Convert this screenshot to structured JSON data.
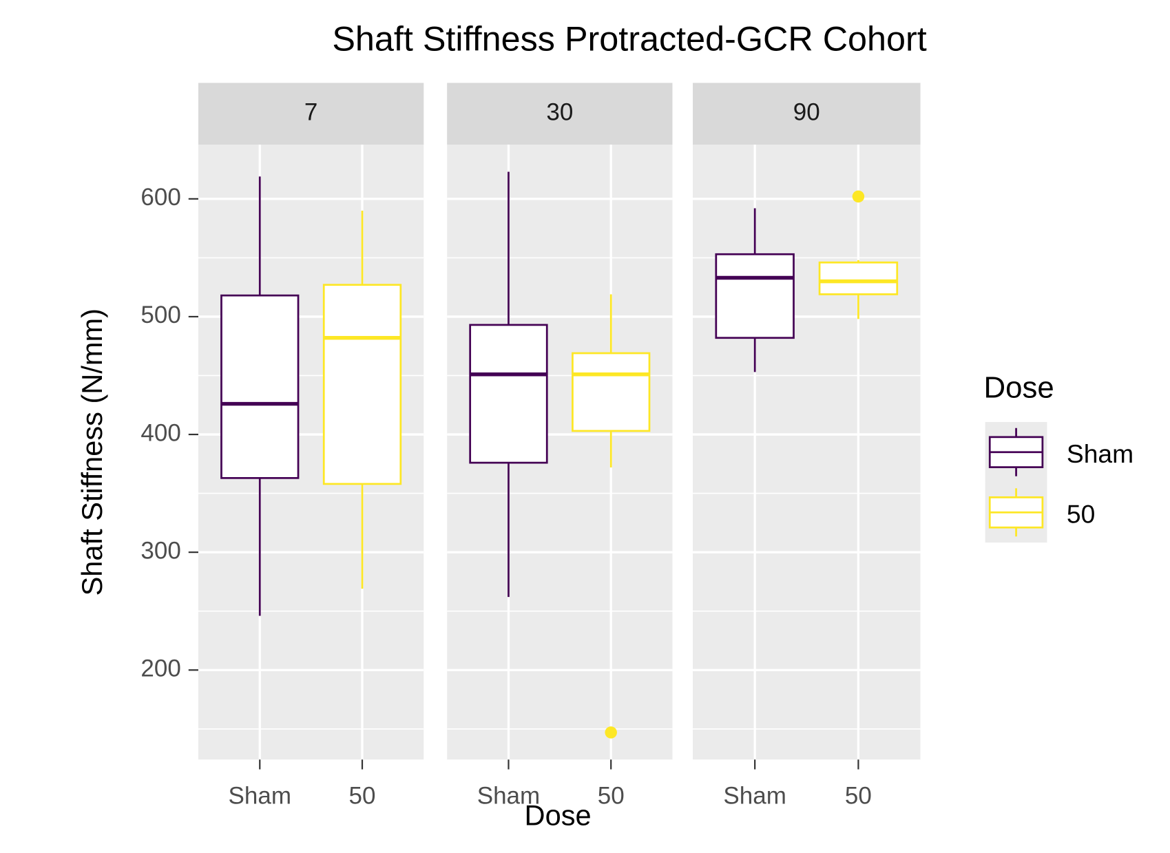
{
  "chart_data": {
    "type": "boxplot",
    "title": "Shaft Stiffness Protracted-GCR Cohort",
    "x_label": "Dose",
    "y_label": "Shaft Stiffness (N/mm)",
    "legend_title": "Dose",
    "legend_position": "right",
    "facets": [
      "7",
      "30",
      "90"
    ],
    "categories": [
      "Sham",
      "50"
    ],
    "ylim": [
      124,
      646
    ],
    "yticks": [
      200,
      300,
      400,
      500,
      600
    ],
    "yminor": [
      150,
      250,
      350,
      450,
      550
    ],
    "grid": true,
    "series": [
      {
        "name": "Sham",
        "color": "#440154",
        "boxes": [
          {
            "min": 246,
            "q1": 363,
            "median": 426,
            "q3": 518,
            "max": 619
          },
          {
            "min": 262,
            "q1": 376,
            "median": 451,
            "q3": 493,
            "max": 623
          },
          {
            "min": 453,
            "q1": 482,
            "median": 533,
            "q3": 553,
            "max": 592
          }
        ]
      },
      {
        "name": "50",
        "color": "#fde725",
        "boxes": [
          {
            "min": 269,
            "q1": 358,
            "median": 482,
            "q3": 527,
            "max": 590
          },
          {
            "min": 372,
            "q1": 403,
            "median": 451,
            "q3": 469,
            "max": 519,
            "outliers": [
              147
            ]
          },
          {
            "min": 498,
            "q1": 519,
            "median": 530,
            "q3": 546,
            "max": 548,
            "outliers": [
              602
            ]
          }
        ]
      }
    ]
  }
}
